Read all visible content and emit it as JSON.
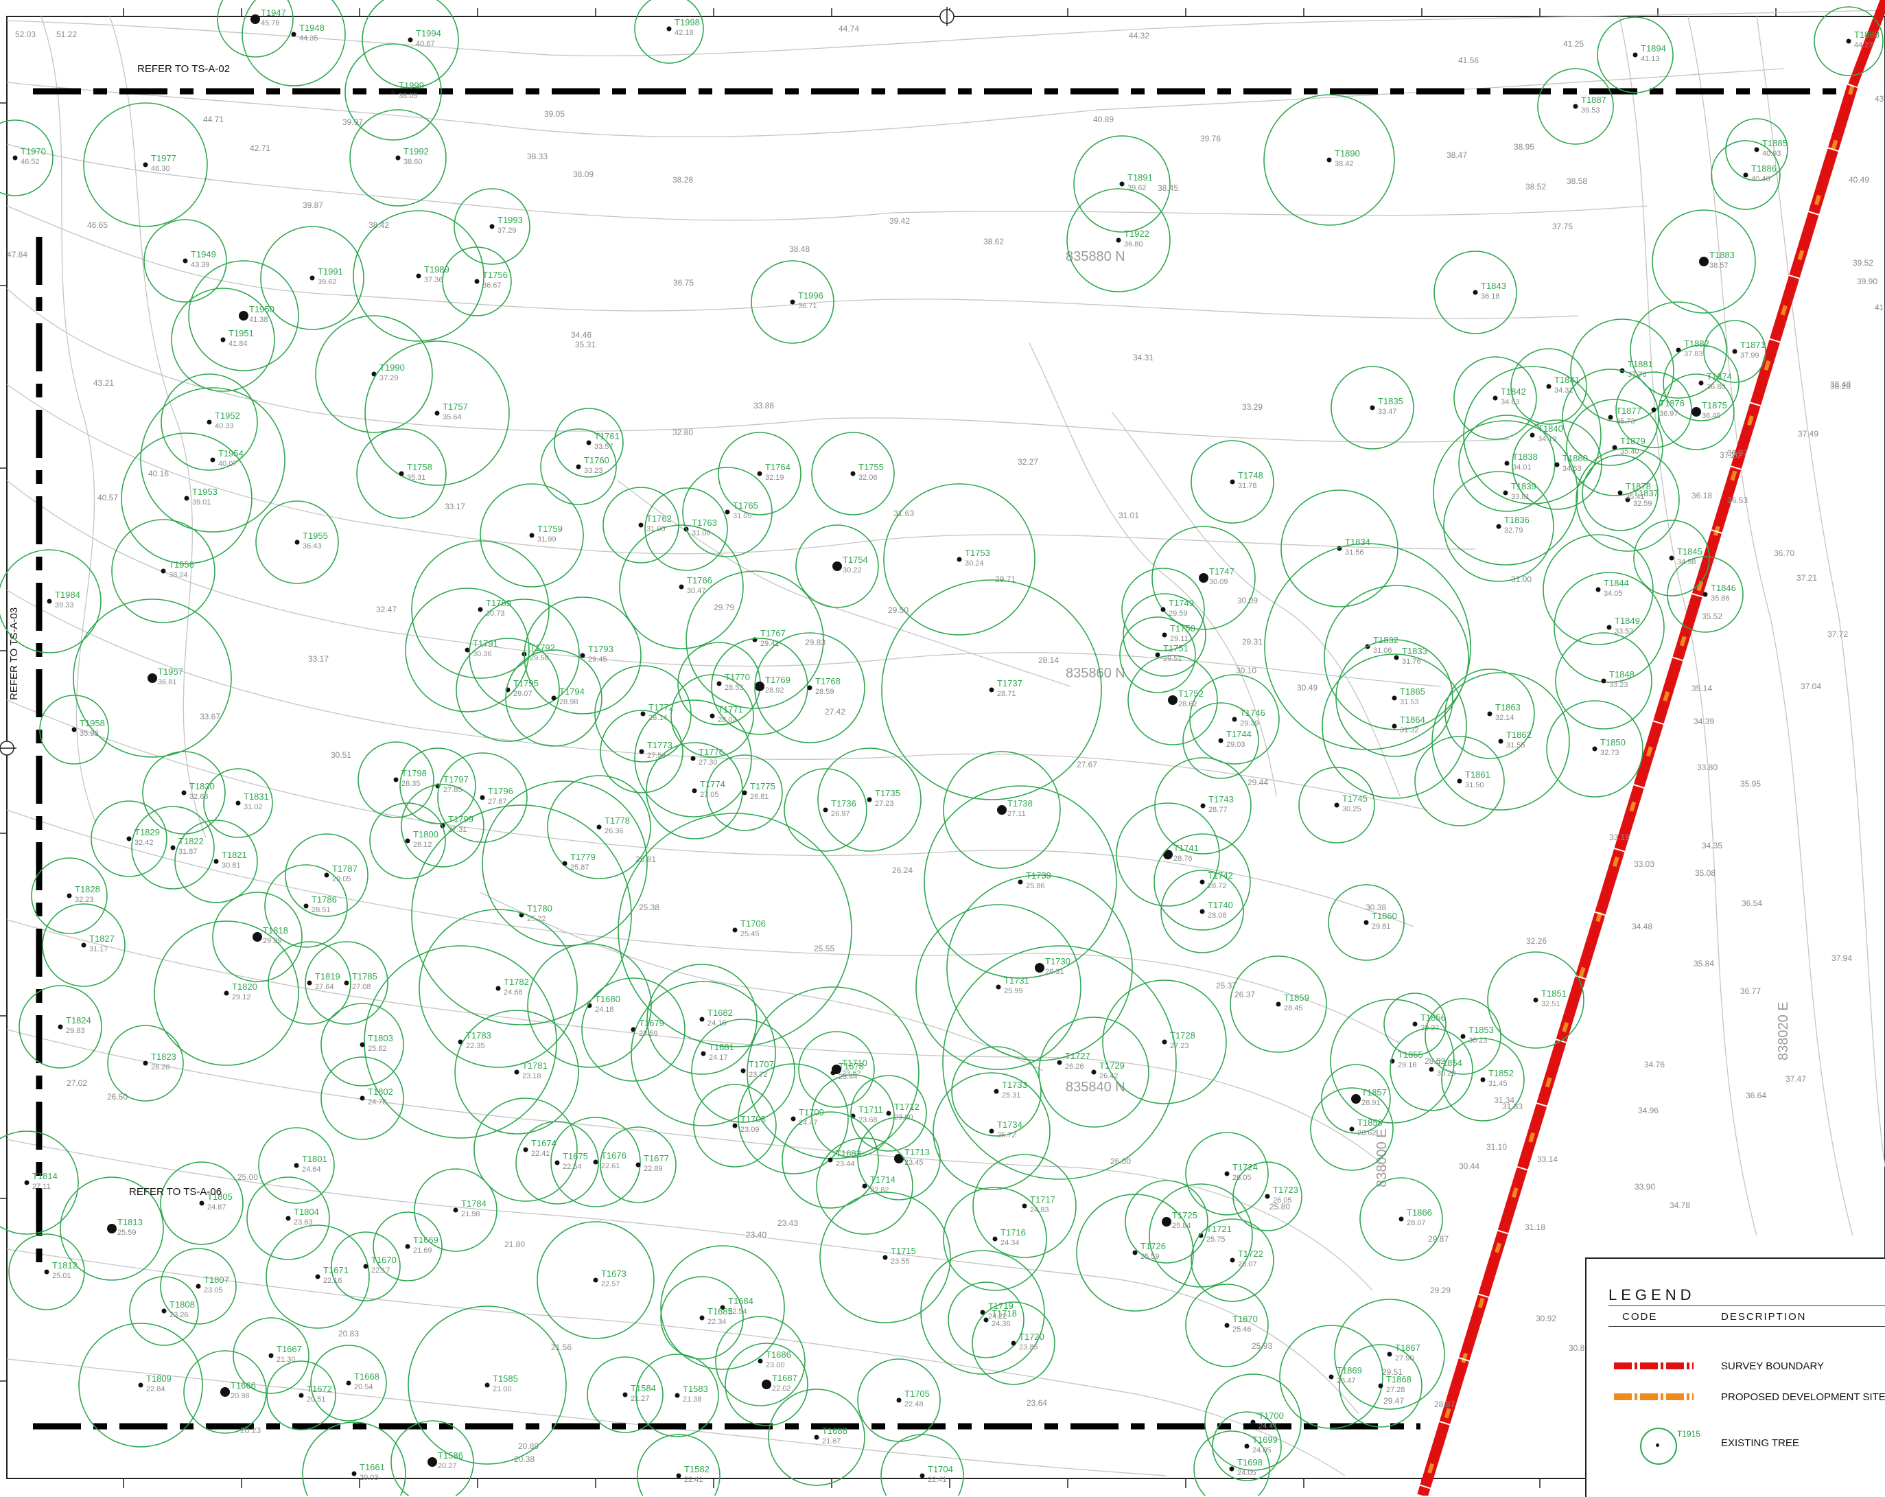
{
  "references": {
    "north": "REFER TO TS-A-02",
    "west": "REFER TO TS-A-03",
    "southwest": "REFER TO TS-A-06"
  },
  "grid_labels": [
    "835880 N",
    "835860 N",
    "835840 N",
    "838020 E",
    "838000 E"
  ],
  "legend": {
    "title": "LEGEND",
    "code_header": "CODE",
    "description_header": "DESCRIPTION",
    "items": [
      {
        "description": "SURVEY BOUNDARY",
        "color": "#e01010"
      },
      {
        "description": "PROPOSED DEVELOPMENT SITE BOUNDARY",
        "color": "#f08a1e"
      },
      {
        "description": "EXISTING TREE",
        "sample_id": "T1915",
        "color": "#2fa84f"
      }
    ]
  },
  "colors": {
    "tree": "#2fa84f",
    "survey_boundary": "#e01010",
    "site_boundary": "#f08a1e",
    "contour": "#bdbdbd",
    "spot_level": "#8a8a8a",
    "match_line": "#000000"
  },
  "trees": [
    {
      "id": "T1947",
      "level": "45.78"
    },
    {
      "id": "T1948",
      "level": "44.35"
    },
    {
      "id": "T1994",
      "level": "40.67"
    },
    {
      "id": "T1998",
      "level": "42.18"
    },
    {
      "id": "T1977",
      "level": "46.30"
    },
    {
      "id": "T1992",
      "level": "38.60"
    },
    {
      "id": "T1993",
      "level": "37.29"
    },
    {
      "id": "T1989",
      "level": "37.36"
    },
    {
      "id": "T1756",
      "level": "36.67"
    },
    {
      "id": "T1991",
      "level": "39.62"
    },
    {
      "id": "T1949",
      "level": "43.39"
    },
    {
      "id": "T1950",
      "level": "41.38"
    },
    {
      "id": "T1951",
      "level": "41.84"
    },
    {
      "id": "T1990",
      "level": "37.29"
    },
    {
      "id": "T1757",
      "level": "35.64"
    },
    {
      "id": "T1758",
      "level": "35.31"
    },
    {
      "id": "T1952",
      "level": "40.33"
    },
    {
      "id": "T1954",
      "level": "40.07"
    },
    {
      "id": "T1953",
      "level": "39.01"
    },
    {
      "id": "T1955",
      "level": "36.43"
    },
    {
      "id": "T1956",
      "level": "38.24"
    },
    {
      "id": "T1984",
      "level": "39.33"
    },
    {
      "id": "T1957",
      "level": "36.81"
    },
    {
      "id": "T1958",
      "level": "35.93"
    },
    {
      "id": "T1996",
      "level": "36.71"
    },
    {
      "id": "T1761",
      "level": "33.57"
    },
    {
      "id": "T1760",
      "level": "33.23"
    },
    {
      "id": "T1764",
      "level": "32.19"
    },
    {
      "id": "T1755",
      "level": "32.06"
    },
    {
      "id": "T1759",
      "level": "31.99"
    },
    {
      "id": "T1762",
      "level": "31.00"
    },
    {
      "id": "T1763",
      "level": "31.00"
    },
    {
      "id": "T1765",
      "level": "31.05"
    },
    {
      "id": "T1754",
      "level": "30.22"
    },
    {
      "id": "T1753",
      "level": "30.24"
    },
    {
      "id": "T1766",
      "level": "30.47"
    },
    {
      "id": "T1789",
      "level": "30.73"
    },
    {
      "id": "T1791",
      "level": "30.36"
    },
    {
      "id": "T1792",
      "level": "29.58"
    },
    {
      "id": "T1793",
      "level": "29.45"
    },
    {
      "id": "T1795",
      "level": "29.07"
    },
    {
      "id": "T1794",
      "level": "28.98"
    },
    {
      "id": "T1767",
      "level": "29.41"
    },
    {
      "id": "T1770",
      "level": "28.53"
    },
    {
      "id": "T1769",
      "level": "28.92"
    },
    {
      "id": "T1768",
      "level": "28.59"
    },
    {
      "id": "T1737",
      "level": "28.71"
    },
    {
      "id": "T1772",
      "level": "28.14"
    },
    {
      "id": "T1771",
      "level": "28.02"
    },
    {
      "id": "T1773",
      "level": "27.54"
    },
    {
      "id": "T1776",
      "level": "27.30"
    },
    {
      "id": "T1774",
      "level": "27.05"
    },
    {
      "id": "T1775",
      "level": "26.81"
    },
    {
      "id": "T1736",
      "level": "26.97"
    },
    {
      "id": "T1735",
      "level": "27.23"
    },
    {
      "id": "T1738",
      "level": "27.11"
    },
    {
      "id": "T1798",
      "level": "28.35"
    },
    {
      "id": "T1797",
      "level": "27.85"
    },
    {
      "id": "T1796",
      "level": "27.67"
    },
    {
      "id": "T1799",
      "level": "27.31"
    },
    {
      "id": "T1800",
      "level": "28.12"
    },
    {
      "id": "T1778",
      "level": "26.36"
    },
    {
      "id": "T1779",
      "level": "25.87"
    },
    {
      "id": "T1780",
      "level": "25.22"
    },
    {
      "id": "T1706",
      "level": "25.45"
    },
    {
      "id": "T1739",
      "level": "25.86"
    },
    {
      "id": "T1730",
      "level": "28.31"
    },
    {
      "id": "T1731",
      "level": "25.99"
    },
    {
      "id": "T1782",
      "level": "24.68"
    },
    {
      "id": "T1680",
      "level": "24.18"
    },
    {
      "id": "T1679",
      "level": "23.59"
    },
    {
      "id": "T1682",
      "level": "24.15"
    },
    {
      "id": "T1681",
      "level": "24.17"
    },
    {
      "id": "T1783",
      "level": "22.35"
    },
    {
      "id": "T1781",
      "level": "23.18"
    },
    {
      "id": "T1678",
      "level": "23.44"
    },
    {
      "id": "T1707",
      "level": "23.72"
    },
    {
      "id": "T1710",
      "level": "23.62"
    },
    {
      "id": "T1727",
      "level": "26.26"
    },
    {
      "id": "T1729",
      "level": "26.42"
    },
    {
      "id": "T1728",
      "level": "27.23"
    },
    {
      "id": "T1733",
      "level": "25.31"
    },
    {
      "id": "T1734",
      "level": "25.72"
    },
    {
      "id": "T1709",
      "level": "24.47"
    },
    {
      "id": "T1711",
      "level": "23.68"
    },
    {
      "id": "T1712",
      "level": "23.60"
    },
    {
      "id": "T1708",
      "level": "23.09"
    },
    {
      "id": "T1683",
      "level": "23.44"
    },
    {
      "id": "T1713",
      "level": "23.45"
    },
    {
      "id": "T1714",
      "level": "22.82"
    },
    {
      "id": "T1674",
      "level": "22.41"
    },
    {
      "id": "T1675",
      "level": "22.54"
    },
    {
      "id": "T1676",
      "level": "22.61"
    },
    {
      "id": "T1677",
      "level": "22.89"
    },
    {
      "id": "T1717",
      "level": "24.83"
    },
    {
      "id": "T1716",
      "level": "24.34"
    },
    {
      "id": "T1715",
      "level": "23.55"
    },
    {
      "id": "T1724",
      "level": "26.05"
    },
    {
      "id": "T1723",
      "level": "26.05"
    },
    {
      "id": "T1725",
      "level": "25.84"
    },
    {
      "id": "T1721",
      "level": "25.75"
    },
    {
      "id": "T1726",
      "level": "25.59"
    },
    {
      "id": "T1722",
      "level": "26.07"
    },
    {
      "id": "T1673",
      "level": "22.57"
    },
    {
      "id": "T1684",
      "level": "22.54"
    },
    {
      "id": "T1685",
      "level": "22.34"
    },
    {
      "id": "T1718",
      "level": "24.36"
    },
    {
      "id": "T1719",
      "level": "24.22"
    },
    {
      "id": "T1720",
      "level": "23.85"
    },
    {
      "id": "T1686",
      "level": "23.00"
    },
    {
      "id": "T1687",
      "level": "22.02"
    },
    {
      "id": "T1705",
      "level": "22.48"
    },
    {
      "id": "T1584",
      "level": "21.27"
    },
    {
      "id": "T1583",
      "level": "21.38"
    },
    {
      "id": "T1585",
      "level": "21.00"
    },
    {
      "id": "T1688",
      "level": "21.67"
    },
    {
      "id": "T1700",
      "level": "24.41"
    },
    {
      "id": "T1699",
      "level": "24.05"
    },
    {
      "id": "T1698",
      "level": "24.05"
    },
    {
      "id": "T1704",
      "level": "22.41"
    },
    {
      "id": "T1582",
      "level": "22.41"
    },
    {
      "id": "T1586",
      "level": "20.27"
    },
    {
      "id": "T1661",
      "level": "20.03"
    },
    {
      "id": "T1830",
      "level": "32.68"
    },
    {
      "id": "T1831",
      "level": "31.02"
    },
    {
      "id": "T1829",
      "level": "32.42"
    },
    {
      "id": "T1822",
      "level": "31.87"
    },
    {
      "id": "T1821",
      "level": "30.81"
    },
    {
      "id": "T1828",
      "level": "32.23"
    },
    {
      "id": "T1827",
      "level": "31.17"
    },
    {
      "id": "T1787",
      "level": "29.05"
    },
    {
      "id": "T1786",
      "level": "28.51"
    },
    {
      "id": "T1818",
      "level": "29.89"
    },
    {
      "id": "T1819",
      "level": "27.64"
    },
    {
      "id": "T1785",
      "level": "27.08"
    },
    {
      "id": "T1820",
      "level": "29.12"
    },
    {
      "id": "T1824",
      "level": "29.83"
    },
    {
      "id": "T1803",
      "level": "25.82"
    },
    {
      "id": "T1823",
      "level": "28.28"
    },
    {
      "id": "T1802",
      "level": "24.78"
    },
    {
      "id": "T1801",
      "level": "24.64"
    },
    {
      "id": "T1814",
      "level": "27.11"
    },
    {
      "id": "T1805",
      "level": "24.87"
    },
    {
      "id": "T1813",
      "level": "25.59"
    },
    {
      "id": "T1804",
      "level": "23.63"
    },
    {
      "id": "T1784",
      "level": "21.98"
    },
    {
      "id": "T1669",
      "level": "21.69"
    },
    {
      "id": "T1671",
      "level": "22.16"
    },
    {
      "id": "T1670",
      "level": "22.17"
    },
    {
      "id": "T1812",
      "level": "25.01"
    },
    {
      "id": "T1807",
      "level": "23.05"
    },
    {
      "id": "T1808",
      "level": "23.26"
    },
    {
      "id": "T1667",
      "level": "21.30"
    },
    {
      "id": "T1809",
      "level": "22.84"
    },
    {
      "id": "T1666",
      "level": "20.98"
    },
    {
      "id": "T1672",
      "level": "20.51"
    },
    {
      "id": "T1668",
      "level": "20.54"
    },
    {
      "id": "T1891",
      "level": "39.62"
    },
    {
      "id": "T1922",
      "level": "36.80"
    },
    {
      "id": "T1890",
      "level": "38.42"
    },
    {
      "id": "T1887",
      "level": "39.53"
    },
    {
      "id": "T1894",
      "level": "41.13"
    },
    {
      "id": "T1888",
      "level": "44.27"
    },
    {
      "id": "T1885",
      "level": "40.93"
    },
    {
      "id": "T1886",
      "level": "40.46"
    },
    {
      "id": "T1883",
      "level": "38.57"
    },
    {
      "id": "T1843",
      "level": "36.18"
    },
    {
      "id": "T1748",
      "level": "31.78"
    },
    {
      "id": "T1835",
      "level": "33.47"
    },
    {
      "id": "T1841",
      "level": "34.31"
    },
    {
      "id": "T1842",
      "level": "34.63"
    },
    {
      "id": "T1881",
      "level": "37.76"
    },
    {
      "id": "T1882",
      "level": "37.83"
    },
    {
      "id": "T1871",
      "level": "37.99"
    },
    {
      "id": "T1874",
      "level": "36.80"
    },
    {
      "id": "T1876",
      "level": "36.97"
    },
    {
      "id": "T1875",
      "level": "36.45"
    },
    {
      "id": "T1877",
      "level": "35.73"
    },
    {
      "id": "T1879",
      "level": "35.40"
    },
    {
      "id": "T1840",
      "level": "34.19"
    },
    {
      "id": "T1838",
      "level": "34.01"
    },
    {
      "id": "T1880",
      "level": "34.63"
    },
    {
      "id": "T1839",
      "level": "33.81"
    },
    {
      "id": "T1836",
      "level": "32.79"
    },
    {
      "id": "T1837",
      "level": "32.59"
    },
    {
      "id": "T1878",
      "level": "35.41"
    },
    {
      "id": "T1834",
      "level": "31.56"
    },
    {
      "id": "T1747",
      "level": "30.09"
    },
    {
      "id": "T1845",
      "level": "34.98"
    },
    {
      "id": "T1846",
      "level": "35.86"
    },
    {
      "id": "T1844",
      "level": "34.05"
    },
    {
      "id": "T1749",
      "level": "29.59"
    },
    {
      "id": "T1750",
      "level": "29.11"
    },
    {
      "id": "T1751",
      "level": "29.51"
    },
    {
      "id": "T1832",
      "level": "31.06"
    },
    {
      "id": "T1833",
      "level": "31.76"
    },
    {
      "id": "T1849",
      "level": "33.52"
    },
    {
      "id": "T1848",
      "level": "33.23"
    },
    {
      "id": "T1752",
      "level": "28.62"
    },
    {
      "id": "T1746",
      "level": "29.39"
    },
    {
      "id": "T1744",
      "level": "29.03"
    },
    {
      "id": "T1865",
      "level": "31.53"
    },
    {
      "id": "T1864",
      "level": "31.32"
    },
    {
      "id": "T1863",
      "level": "32.14"
    },
    {
      "id": "T1862",
      "level": "31.55"
    },
    {
      "id": "T1850",
      "level": "32.73"
    },
    {
      "id": "T1743",
      "level": "28.77"
    },
    {
      "id": "T1745",
      "level": "30.25"
    },
    {
      "id": "T1861",
      "level": "31.50"
    },
    {
      "id": "T1741",
      "level": "28.76"
    },
    {
      "id": "T1742",
      "level": "28.72"
    },
    {
      "id": "T1740",
      "level": "28.08"
    },
    {
      "id": "T1860",
      "level": "29.81"
    },
    {
      "id": "T1859",
      "level": "28.45"
    },
    {
      "id": "T1851",
      "level": "32.51"
    },
    {
      "id": "T1856",
      "level": "29.27"
    },
    {
      "id": "T1853",
      "level": "30.23"
    },
    {
      "id": "T1855",
      "level": "29.18"
    },
    {
      "id": "T1854",
      "level": "30.20"
    },
    {
      "id": "T1852",
      "level": "31.45"
    },
    {
      "id": "T1857",
      "level": "28.91"
    },
    {
      "id": "T1858",
      "level": "28.62"
    },
    {
      "id": "T1866",
      "level": "28.07"
    },
    {
      "id": "T1870",
      "level": "25.46"
    },
    {
      "id": "T1867",
      "level": "27.90"
    },
    {
      "id": "T1869",
      "level": "26.47"
    },
    {
      "id": "T1868",
      "level": "27.28"
    },
    {
      "id": "T1970",
      "level": "46.52"
    },
    {
      "id": "T1999",
      "level": "38.05"
    }
  ],
  "spot_levels": [
    "52.03",
    "51.22",
    "44.74",
    "44.32",
    "41.25",
    "41.56",
    "44.71",
    "42.71",
    "39.97",
    "39.05",
    "40.89",
    "39.76",
    "38.47",
    "38.33",
    "38.09",
    "38.28",
    "39.42",
    "38.48",
    "38.62",
    "38.45",
    "37.75",
    "38.52",
    "38.58",
    "46.65",
    "47.84",
    "39.87",
    "38.42",
    "43.21",
    "40.16",
    "40.57",
    "33.17",
    "32.47",
    "33.17",
    "33.67",
    "30.51",
    "36.75",
    "35.31",
    "34.46",
    "34.31",
    "33.88",
    "32.80",
    "33.29",
    "32.27",
    "31.63",
    "31.01",
    "29.71",
    "29.50",
    "29.79",
    "29.83",
    "28.14",
    "27.42",
    "27.67",
    "25.81",
    "26.24",
    "25.55",
    "26.00",
    "25.37",
    "23.40",
    "23.43",
    "21.80",
    "21.56",
    "20.83",
    "20.23",
    "20.38",
    "20.89",
    "23.64",
    "25.93",
    "28.87",
    "29.47",
    "29.51",
    "30.88",
    "30.92",
    "31.18",
    "33.14",
    "33.90",
    "34.78",
    "34.96",
    "36.64",
    "37.47",
    "37.94",
    "36.77",
    "35.84",
    "34.76",
    "34.48",
    "35.08",
    "34.35",
    "33.03",
    "33.80",
    "34.39",
    "35.14",
    "35.95",
    "36.54",
    "37.04",
    "37.72",
    "37.21",
    "36.70",
    "36.18",
    "36.53",
    "37.20",
    "36.97",
    "38.28",
    "38.48",
    "39.52",
    "39.90",
    "40.49",
    "41.74",
    "43.17",
    "33.19",
    "35.52",
    "37.49",
    "38.95",
    "30.49",
    "25.38",
    "28.62",
    "27.02",
    "26.50",
    "25.00",
    "30.44",
    "31.10",
    "30.38",
    "31.00",
    "32.26",
    "29.44",
    "30.10",
    "29.31",
    "30.09",
    "31.34",
    "31.83",
    "29.87",
    "29.29",
    "25.80",
    "26.37"
  ]
}
